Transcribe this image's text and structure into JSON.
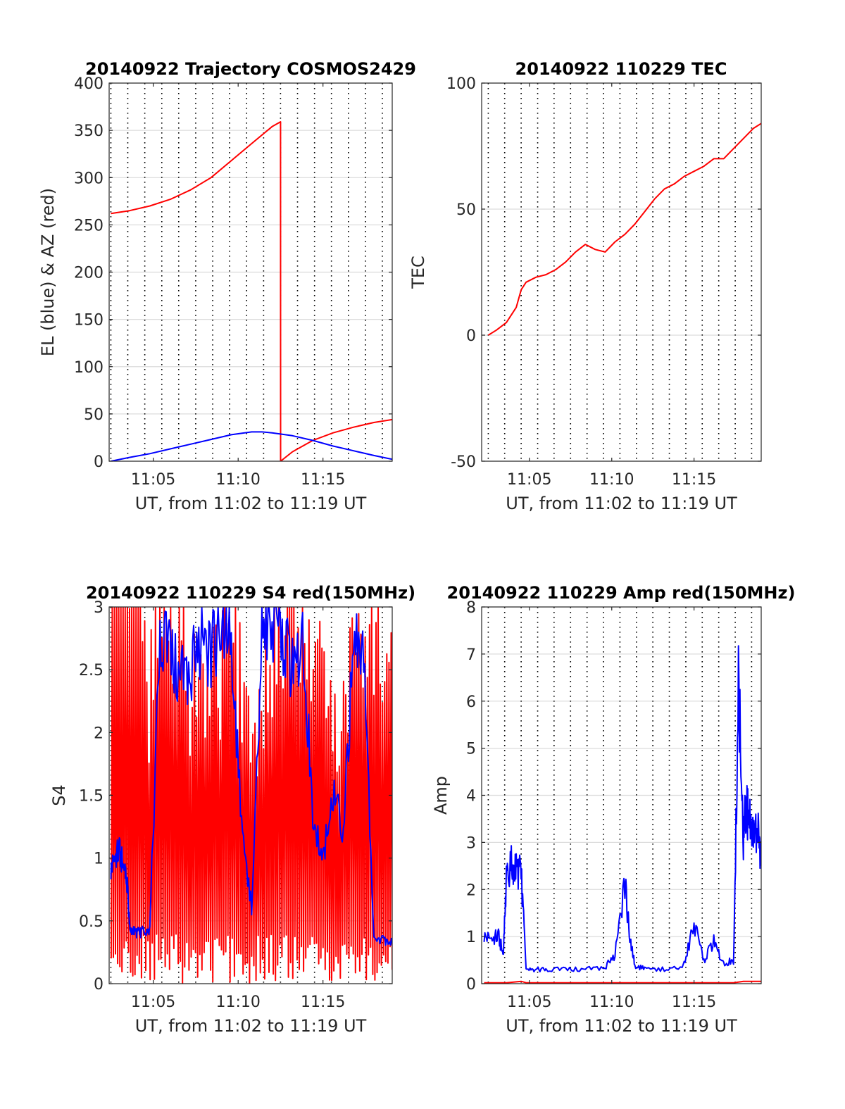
{
  "figure": {
    "colors": {
      "red": "#ff0000",
      "blue": "#0000ff",
      "axis": "#262626"
    }
  },
  "chart_data": [
    {
      "type": "line",
      "title": "20140922 Trajectory COSMOS2429",
      "xlabel": "UT, from 11:02 to 11:19 UT",
      "ylabel": "EL (blue) & AZ (red)",
      "xlim": [
        11.04,
        11.318
      ],
      "ylim": [
        0,
        400
      ],
      "x_ticks": [
        11.0833,
        11.1667,
        11.25
      ],
      "x_tick_labels": [
        "11:05",
        "11:10",
        "11:15"
      ],
      "y_ticks": [
        0,
        50,
        100,
        150,
        200,
        250,
        300,
        350,
        400
      ],
      "y_tick_labels": [
        "0",
        "50",
        "100",
        "150",
        "200",
        "250",
        "300",
        "350",
        "400"
      ],
      "grid": true,
      "vertical_gridlines": [
        11.0417,
        11.0583,
        11.075,
        11.0917,
        11.1083,
        11.125,
        11.1417,
        11.1583,
        11.175,
        11.1917,
        11.2083,
        11.225,
        11.2417,
        11.2583,
        11.275,
        11.2917,
        11.3083
      ],
      "series": [
        {
          "name": "AZ",
          "color": "#ff0000",
          "x": [
            11.0417,
            11.06,
            11.08,
            11.1,
            11.12,
            11.14,
            11.16,
            11.18,
            11.2,
            11.2083,
            11.2084,
            11.22,
            11.24,
            11.26,
            11.28,
            11.3,
            11.318
          ],
          "y": [
            262,
            265,
            270,
            277,
            287,
            300,
            318,
            336,
            354,
            359,
            0,
            10,
            22,
            30,
            36,
            41,
            44
          ]
        },
        {
          "name": "EL",
          "color": "#0000ff",
          "x": [
            11.0417,
            11.06,
            11.08,
            11.1,
            11.12,
            11.14,
            11.16,
            11.18,
            11.19,
            11.2,
            11.22,
            11.24,
            11.26,
            11.28,
            11.3,
            11.318
          ],
          "y": [
            0,
            4,
            8,
            13,
            18,
            23,
            28,
            31,
            31,
            30,
            27,
            22,
            16,
            11,
            6,
            2
          ]
        }
      ]
    },
    {
      "type": "line",
      "title": "20140922 110229 TEC",
      "xlabel": "UT, from 11:02 to 11:19 UT",
      "ylabel": "TEC",
      "xlim": [
        11.035,
        11.318
      ],
      "ylim": [
        -50,
        100
      ],
      "x_ticks": [
        11.0833,
        11.1667,
        11.25
      ],
      "x_tick_labels": [
        "11:05",
        "11:10",
        "11:15"
      ],
      "y_ticks": [
        -50,
        0,
        50,
        100
      ],
      "y_tick_labels": [
        "-50",
        "0",
        "50",
        "100"
      ],
      "grid": true,
      "vertical_gridlines": [
        11.0417,
        11.0583,
        11.075,
        11.0917,
        11.1083,
        11.125,
        11.1417,
        11.1583,
        11.175,
        11.1917,
        11.2083,
        11.225,
        11.2417,
        11.2583,
        11.275,
        11.2917,
        11.3083
      ],
      "series": [
        {
          "name": "TEC",
          "color": "#ff0000",
          "x": [
            11.0417,
            11.05,
            11.06,
            11.07,
            11.075,
            11.08,
            11.09,
            11.1,
            11.11,
            11.12,
            11.13,
            11.14,
            11.15,
            11.16,
            11.17,
            11.18,
            11.19,
            11.2,
            11.21,
            11.22,
            11.23,
            11.24,
            11.25,
            11.26,
            11.27,
            11.28,
            11.29,
            11.3,
            11.31,
            11.318
          ],
          "y": [
            0,
            2,
            5,
            11,
            18,
            21,
            23,
            24,
            26,
            29,
            33,
            36,
            34,
            33,
            37,
            40,
            44,
            49,
            54,
            58,
            60,
            63,
            65,
            67,
            70,
            70,
            74,
            78,
            82,
            84
          ]
        }
      ]
    },
    {
      "type": "line",
      "title": "20140922 110229 S4 red(150MHz)",
      "xlabel": "UT, from 11:02 to 11:19 UT",
      "ylabel": "S4",
      "xlim": [
        11.04,
        11.318
      ],
      "ylim": [
        0,
        3
      ],
      "x_ticks": [
        11.0833,
        11.1667,
        11.25
      ],
      "x_tick_labels": [
        "11:05",
        "11:10",
        "11:15"
      ],
      "y_ticks": [
        0,
        0.5,
        1,
        1.5,
        2,
        2.5,
        3
      ],
      "y_tick_labels": [
        "0",
        "0.5",
        "1",
        "1.5",
        "2",
        "2.5",
        "3"
      ],
      "grid": true,
      "vertical_gridlines": [
        11.0417,
        11.0583,
        11.075,
        11.0917,
        11.1083,
        11.125,
        11.1417,
        11.1583,
        11.175,
        11.1917,
        11.2083,
        11.225,
        11.2417,
        11.2583,
        11.275,
        11.2917,
        11.3083
      ],
      "series": [
        {
          "name": "S4 red",
          "color": "#ff0000",
          "style": "dense-spikes",
          "x": [
            11.0417,
            11.05,
            11.06,
            11.07,
            11.08,
            11.09,
            11.1,
            11.12,
            11.14,
            11.16,
            11.18,
            11.2,
            11.22,
            11.24,
            11.26,
            11.28,
            11.3,
            11.318
          ],
          "y": [
            2.8,
            2.9,
            2.7,
            2.9,
            1.5,
            2.8,
            2.0,
            1.8,
            1.8,
            2.0,
            1.5,
            2.0,
            2.5,
            1.9,
            1.5,
            2.0,
            2.2,
            2.1
          ]
        },
        {
          "name": "S4 blue",
          "color": "#0000ff",
          "x": [
            11.0417,
            11.045,
            11.05,
            11.055,
            11.058,
            11.06,
            11.065,
            11.07,
            11.075,
            11.08,
            11.09,
            11.1,
            11.11,
            11.12,
            11.13,
            11.14,
            11.15,
            11.16,
            11.17,
            11.18,
            11.19,
            11.2,
            11.21,
            11.22,
            11.23,
            11.24,
            11.25,
            11.26,
            11.27,
            11.28,
            11.29,
            11.3,
            11.31,
            11.318
          ],
          "y": [
            0.9,
            1.0,
            1.05,
            0.9,
            0.8,
            0.45,
            0.42,
            0.4,
            0.42,
            0.45,
            2.8,
            2.6,
            2.4,
            2.5,
            2.7,
            2.6,
            2.9,
            2.8,
            1.2,
            0.6,
            2.9,
            2.9,
            2.8,
            2.5,
            2.7,
            1.4,
            1.0,
            1.5,
            1.2,
            2.7,
            2.8,
            0.35,
            0.35,
            0.32
          ]
        }
      ]
    },
    {
      "type": "line",
      "title": "20140922 110229 Amp red(150MHz)",
      "xlabel": "UT, from 11:02 to 11:19 UT",
      "ylabel": "Amp",
      "xlim": [
        11.035,
        11.318
      ],
      "ylim": [
        0,
        8
      ],
      "x_ticks": [
        11.0833,
        11.1667,
        11.25
      ],
      "x_tick_labels": [
        "11:05",
        "11:10",
        "11:15"
      ],
      "y_ticks": [
        0,
        1,
        2,
        3,
        4,
        5,
        6,
        7,
        8
      ],
      "y_tick_labels": [
        "0",
        "1",
        "2",
        "3",
        "4",
        "5",
        "6",
        "7",
        "8"
      ],
      "grid": true,
      "vertical_gridlines": [
        11.0417,
        11.0583,
        11.075,
        11.0917,
        11.1083,
        11.125,
        11.1417,
        11.1583,
        11.175,
        11.1917,
        11.2083,
        11.225,
        11.2417,
        11.2583,
        11.275,
        11.2917,
        11.3083
      ],
      "series": [
        {
          "name": "Amp blue",
          "color": "#0000ff",
          "x": [
            11.0375,
            11.045,
            11.052,
            11.057,
            11.06,
            11.065,
            11.07,
            11.075,
            11.08,
            11.09,
            11.1,
            11.12,
            11.14,
            11.16,
            11.17,
            11.18,
            11.185,
            11.19,
            11.2,
            11.22,
            11.24,
            11.25,
            11.26,
            11.27,
            11.28,
            11.29,
            11.295,
            11.3,
            11.303,
            11.305,
            11.31,
            11.315,
            11.318
          ],
          "y": [
            1.0,
            0.95,
            1.0,
            0.6,
            2.3,
            2.5,
            2.5,
            2.3,
            0.35,
            0.3,
            0.3,
            0.3,
            0.3,
            0.35,
            0.6,
            2.1,
            1.0,
            0.4,
            0.3,
            0.3,
            0.4,
            1.3,
            0.5,
            0.9,
            0.4,
            0.5,
            6.45,
            3.0,
            3.8,
            3.5,
            3.5,
            3.3,
            2.5
          ]
        },
        {
          "name": "Amp red",
          "color": "#ff0000",
          "x": [
            11.0375,
            11.06,
            11.075,
            11.08,
            11.1,
            11.14,
            11.18,
            11.22,
            11.26,
            11.29,
            11.3,
            11.318
          ],
          "y": [
            0.02,
            0.02,
            0.05,
            0.02,
            0.02,
            0.02,
            0.02,
            0.02,
            0.02,
            0.02,
            0.05,
            0.05
          ]
        }
      ]
    }
  ]
}
